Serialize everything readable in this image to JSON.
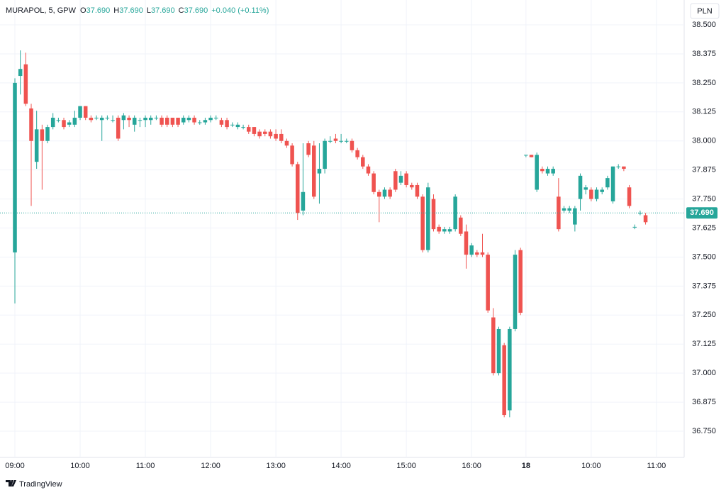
{
  "chart_data": {
    "type": "candlestick",
    "legend": {
      "symbol": "MURAPOL, 5, GPW",
      "items": [
        {
          "key": "O",
          "value": "37.690"
        },
        {
          "key": "H",
          "value": "37.690"
        },
        {
          "key": "L",
          "value": "37.690"
        },
        {
          "key": "C",
          "value": "37.690"
        }
      ],
      "change": "+0.040 (+0.11%)"
    },
    "currency": "PLN",
    "brand": "TradingView",
    "up_color": "#26a69a",
    "down_color": "#ef5350",
    "price_line": {
      "value": 37.69,
      "label": "37.690"
    },
    "grid": true,
    "xlim": [
      -2.74,
      123.1
    ],
    "xticks": [
      {
        "value": 0,
        "label": "09:00"
      },
      {
        "value": 12,
        "label": "10:00"
      },
      {
        "value": 24,
        "label": "11:00"
      },
      {
        "value": 36,
        "label": "12:00"
      },
      {
        "value": 48,
        "label": "13:00"
      },
      {
        "value": 60,
        "label": "14:00"
      },
      {
        "value": 72,
        "label": "15:00"
      },
      {
        "value": 84,
        "label": "16:00"
      },
      {
        "value": 94,
        "label": "18"
      },
      {
        "value": 106,
        "label": "10:00"
      },
      {
        "value": 118,
        "label": "11:00"
      }
    ],
    "ylim": [
      36.637,
      38.607
    ],
    "yticks": [
      {
        "value": 36.75,
        "label": "36.750"
      },
      {
        "value": 36.875,
        "label": "36.875"
      },
      {
        "value": 37,
        "label": "37.000"
      },
      {
        "value": 37.125,
        "label": "37.125"
      },
      {
        "value": 37.25,
        "label": "37.250"
      },
      {
        "value": 37.375,
        "label": "37.375"
      },
      {
        "value": 37.5,
        "label": "37.500"
      },
      {
        "value": 37.625,
        "label": "37.625"
      },
      {
        "value": 37.75,
        "label": "37.750"
      },
      {
        "value": 37.875,
        "label": "37.875"
      },
      {
        "value": 38,
        "label": "38.000"
      },
      {
        "value": 38.125,
        "label": "38.125"
      },
      {
        "value": 38.25,
        "label": "38.250"
      },
      {
        "value": 38.375,
        "label": "38.375"
      },
      {
        "value": 38.5,
        "label": "38.500"
      }
    ],
    "ohlc": [
      [
        37.52,
        38.27,
        37.3,
        38.25
      ],
      [
        38.28,
        38.39,
        38.2,
        38.31
      ],
      [
        38.33,
        38.38,
        38.15,
        38.16
      ],
      [
        38.14,
        38.16,
        37.72,
        38.0
      ],
      [
        37.91,
        38.13,
        37.88,
        38.05
      ],
      [
        38.05,
        38.07,
        37.79,
        38.0
      ],
      [
        38.0,
        38.07,
        37.99,
        38.06
      ],
      [
        38.06,
        38.12,
        38.05,
        38.1
      ],
      [
        38.09,
        38.1,
        38.08,
        38.09
      ],
      [
        38.09,
        38.1,
        38.05,
        38.06
      ],
      [
        38.07,
        38.09,
        38.06,
        38.08
      ],
      [
        38.07,
        38.13,
        38.06,
        38.1
      ],
      [
        38.1,
        38.15,
        38.09,
        38.15
      ],
      [
        38.15,
        38.15,
        38.09,
        38.1
      ],
      [
        38.1,
        38.11,
        38.08,
        38.09
      ],
      [
        38.1,
        38.11,
        38.09,
        38.1
      ],
      [
        38.09,
        38.11,
        38.0,
        38.1
      ],
      [
        38.1,
        38.11,
        38.09,
        38.1
      ],
      [
        38.09,
        38.11,
        38.08,
        38.09
      ],
      [
        38.1,
        38.11,
        38.0,
        38.01
      ],
      [
        38.09,
        38.12,
        38.05,
        38.11
      ],
      [
        38.1,
        38.11,
        38.06,
        38.09
      ],
      [
        38.07,
        38.11,
        38.04,
        38.1
      ],
      [
        38.09,
        38.1,
        38.06,
        38.09
      ],
      [
        38.09,
        38.11,
        38.06,
        38.1
      ],
      [
        38.09,
        38.11,
        38.07,
        38.1
      ],
      [
        38.1,
        38.11,
        38.09,
        38.1
      ],
      [
        38.1,
        38.11,
        38.06,
        38.07
      ],
      [
        38.1,
        38.11,
        38.06,
        38.07
      ],
      [
        38.1,
        38.1,
        38.06,
        38.07
      ],
      [
        38.1,
        38.1,
        38.06,
        38.07
      ],
      [
        38.08,
        38.11,
        38.07,
        38.1
      ],
      [
        38.09,
        38.11,
        38.08,
        38.1
      ],
      [
        38.1,
        38.11,
        38.07,
        38.08
      ],
      [
        38.08,
        38.09,
        38.07,
        38.08
      ],
      [
        38.08,
        38.1,
        38.07,
        38.09
      ],
      [
        38.09,
        38.11,
        38.08,
        38.1
      ],
      [
        38.1,
        38.11,
        38.09,
        38.1
      ],
      [
        38.09,
        38.1,
        38.06,
        38.07
      ],
      [
        38.09,
        38.1,
        38.05,
        38.06
      ],
      [
        38.07,
        38.08,
        38.06,
        38.07
      ],
      [
        38.06,
        38.08,
        38.05,
        38.07
      ],
      [
        38.06,
        38.07,
        38.05,
        38.06
      ],
      [
        38.06,
        38.07,
        38.03,
        38.04
      ],
      [
        38.06,
        38.06,
        38.02,
        38.03
      ],
      [
        38.04,
        38.05,
        38.01,
        38.02
      ],
      [
        38.04,
        38.05,
        38.02,
        38.03
      ],
      [
        38.04,
        38.05,
        38.01,
        38.02
      ],
      [
        38.03,
        38.05,
        38.0,
        38.01
      ],
      [
        38.03,
        38.05,
        37.99,
        38.0
      ],
      [
        38.0,
        38.01,
        37.97,
        37.98
      ],
      [
        37.98,
        37.99,
        37.89,
        37.9
      ],
      [
        37.9,
        37.91,
        37.66,
        37.69
      ],
      [
        37.7,
        37.99,
        37.68,
        37.78
      ],
      [
        37.99,
        38.0,
        37.93,
        37.94
      ],
      [
        37.98,
        38.0,
        37.75,
        37.76
      ],
      [
        37.86,
        37.99,
        37.73,
        37.88
      ],
      [
        37.88,
        38.01,
        37.86,
        38.0
      ],
      [
        38.0,
        38.02,
        37.99,
        38.0
      ],
      [
        38.01,
        38.03,
        37.99,
        38.0
      ],
      [
        38.0,
        38.03,
        37.99,
        38.0
      ],
      [
        38.0,
        38.01,
        37.99,
        38.0
      ],
      [
        38.0,
        38.01,
        37.95,
        37.96
      ],
      [
        37.96,
        37.97,
        37.92,
        37.93
      ],
      [
        37.93,
        37.94,
        37.88,
        37.89
      ],
      [
        37.89,
        37.9,
        37.85,
        37.86
      ],
      [
        37.86,
        37.87,
        37.77,
        37.78
      ],
      [
        37.78,
        37.79,
        37.65,
        37.76
      ],
      [
        37.76,
        37.8,
        37.75,
        37.79
      ],
      [
        37.79,
        37.8,
        37.75,
        37.76
      ],
      [
        37.87,
        37.88,
        37.78,
        37.79
      ],
      [
        37.82,
        37.87,
        37.81,
        37.85
      ],
      [
        37.86,
        37.87,
        37.8,
        37.81
      ],
      [
        37.81,
        37.82,
        37.79,
        37.8
      ],
      [
        37.81,
        37.82,
        37.75,
        37.76
      ],
      [
        37.76,
        37.77,
        37.52,
        37.53
      ],
      [
        37.53,
        37.82,
        37.52,
        37.8
      ],
      [
        37.75,
        37.77,
        37.61,
        37.62
      ],
      [
        37.63,
        37.64,
        37.6,
        37.61
      ],
      [
        37.61,
        37.63,
        37.6,
        37.62
      ],
      [
        37.61,
        37.63,
        37.6,
        37.62
      ],
      [
        37.62,
        37.77,
        37.61,
        37.76
      ],
      [
        37.67,
        37.68,
        37.59,
        37.6
      ],
      [
        37.61,
        37.64,
        37.45,
        37.51
      ],
      [
        37.51,
        37.56,
        37.5,
        37.55
      ],
      [
        37.52,
        37.53,
        37.5,
        37.51
      ],
      [
        37.52,
        37.6,
        37.5,
        37.51
      ],
      [
        37.51,
        37.52,
        37.26,
        37.27
      ],
      [
        37.24,
        37.28,
        36.99,
        37.0
      ],
      [
        37.0,
        37.2,
        36.99,
        37.19
      ],
      [
        37.12,
        37.13,
        36.81,
        36.82
      ],
      [
        36.84,
        37.2,
        36.81,
        37.19
      ],
      [
        37.19,
        37.53,
        37.18,
        37.51
      ],
      [
        37.53,
        37.54,
        37.25,
        37.26
      ],
      [
        37.94,
        37.94,
        37.93,
        37.94
      ],
      [
        37.94,
        37.94,
        37.93,
        37.93
      ],
      [
        37.79,
        37.95,
        37.78,
        37.94
      ],
      [
        37.88,
        37.89,
        37.86,
        37.87
      ],
      [
        37.86,
        37.89,
        37.85,
        37.88
      ],
      [
        37.86,
        37.89,
        37.85,
        37.88
      ],
      [
        37.76,
        37.84,
        37.61,
        37.62
      ],
      [
        37.7,
        37.72,
        37.69,
        37.71
      ],
      [
        37.7,
        37.72,
        37.69,
        37.71
      ],
      [
        37.64,
        37.72,
        37.61,
        37.71
      ],
      [
        37.75,
        37.86,
        37.7,
        37.85
      ],
      [
        37.79,
        37.81,
        37.77,
        37.8
      ],
      [
        37.79,
        37.8,
        37.74,
        37.75
      ],
      [
        37.75,
        37.8,
        37.74,
        37.79
      ],
      [
        37.78,
        37.8,
        37.77,
        37.79
      ],
      [
        37.8,
        37.85,
        37.79,
        37.84
      ],
      [
        37.74,
        37.89,
        37.73,
        37.89
      ],
      [
        37.89,
        37.9,
        37.88,
        37.89
      ],
      [
        37.89,
        37.89,
        37.87,
        37.88
      ],
      [
        37.8,
        37.81,
        37.71,
        37.72
      ],
      [
        37.63,
        37.64,
        37.62,
        37.63
      ],
      [
        37.69,
        37.7,
        37.68,
        37.69
      ],
      [
        37.68,
        37.69,
        37.64,
        37.65
      ]
    ]
  }
}
